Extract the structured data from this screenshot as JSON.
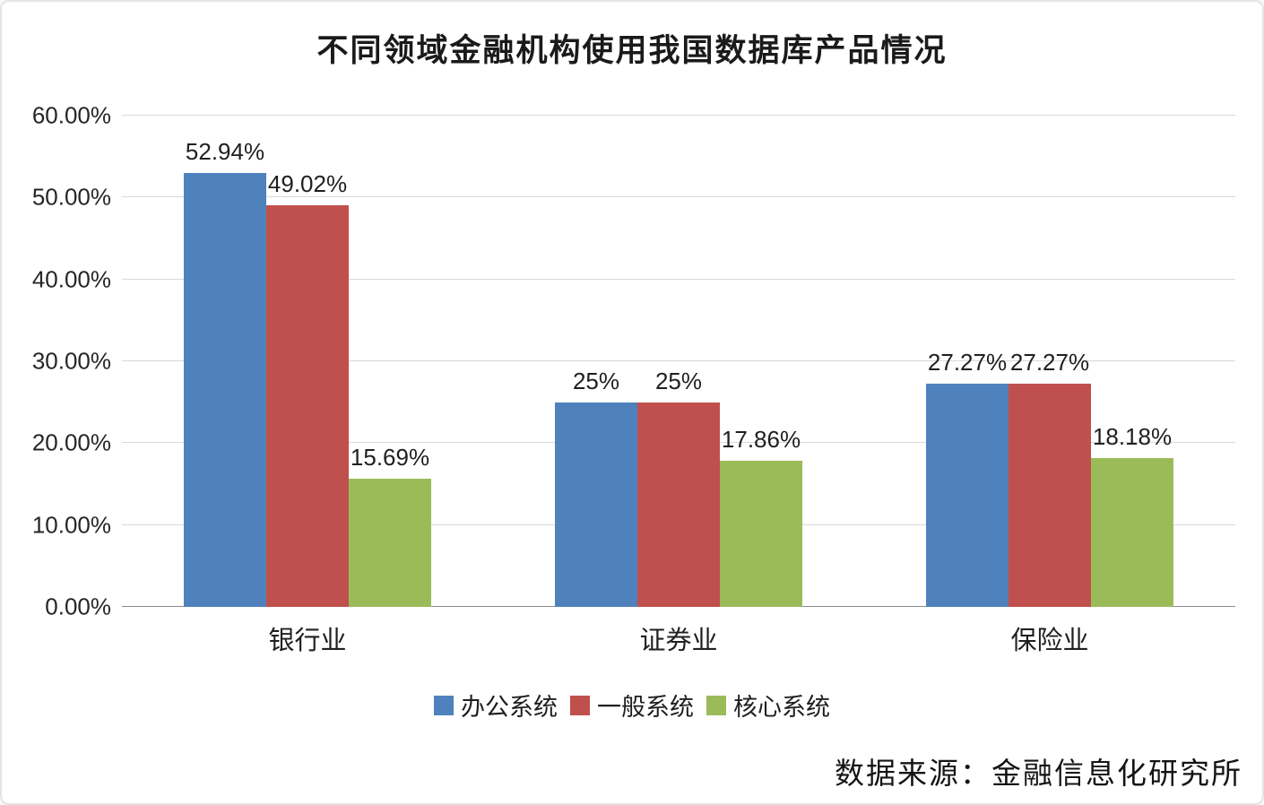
{
  "page": {
    "source_caption": "数据来源：金融信息化研究所"
  },
  "chart_data": {
    "type": "bar",
    "title": "不同领域金融机构使用我国数据库产品情况",
    "categories": [
      "银行业",
      "证券业",
      "保险业"
    ],
    "series": [
      {
        "name": "办公系统",
        "color": "#4f81bd",
        "values": [
          52.94,
          25,
          27.27
        ],
        "labels": [
          "52.94%",
          "25%",
          "27.27%"
        ]
      },
      {
        "name": "一般系统",
        "color": "#c0504d",
        "values": [
          49.02,
          25,
          27.27
        ],
        "labels": [
          "49.02%",
          "25%",
          "27.27%"
        ]
      },
      {
        "name": "核心系统",
        "color": "#9bbb59",
        "values": [
          15.69,
          17.86,
          18.18
        ],
        "labels": [
          "15.69%",
          "17.86%",
          "18.18%"
        ]
      }
    ],
    "xlabel": "",
    "ylabel": "",
    "ylim": [
      0,
      60
    ],
    "yticks": [
      {
        "value": 0,
        "label": "0.00%"
      },
      {
        "value": 10,
        "label": "10.00%"
      },
      {
        "value": 20,
        "label": "20.00%"
      },
      {
        "value": 30,
        "label": "30.00%"
      },
      {
        "value": 40,
        "label": "40.00%"
      },
      {
        "value": 50,
        "label": "50.00%"
      },
      {
        "value": 60,
        "label": "60.00%"
      }
    ],
    "grid": true,
    "legend_position": "bottom"
  }
}
